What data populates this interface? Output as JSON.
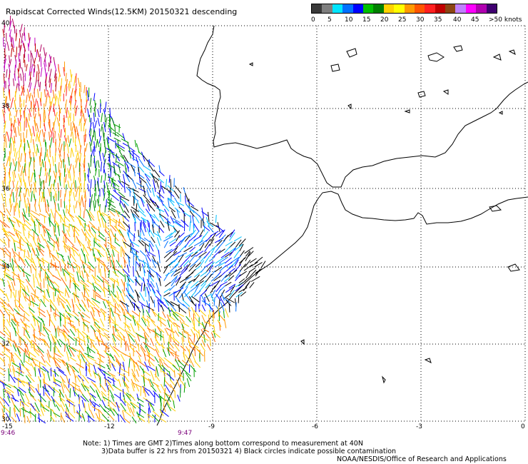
{
  "title": "Rapidscat Corrected Winds(12.5KM) 20150321 descending",
  "legend": {
    "colors": [
      "#3a3a3a",
      "#7f7f7f",
      "#00e5ff",
      "#0070ff",
      "#0000ff",
      "#00c000",
      "#008000",
      "#ffd200",
      "#ffff00",
      "#ff9900",
      "#ff5500",
      "#ff2020",
      "#c00000",
      "#8b4513",
      "#c080ff",
      "#ff00ff",
      "#b000b0",
      "#400070"
    ],
    "labels": [
      "0",
      "5",
      "10",
      "15",
      "20",
      "25",
      "30",
      "35",
      "40",
      "45",
      ">50 knots"
    ]
  },
  "map": {
    "lon_labels": [
      "-15",
      "-12",
      "-9",
      "-6",
      "-3",
      "0"
    ],
    "lat_labels": [
      "40",
      "38",
      "36",
      "34",
      "32",
      "30"
    ],
    "time_labels": [
      "9:46",
      "9:47"
    ]
  },
  "notes": {
    "line1": "Note: 1) Times are GMT 2)Times along bottom correspond to measurement at 40N",
    "line2": "3)Data buffer is 22 hrs from 20150321 4) Black circles indicate possible contamination"
  },
  "credit": "NOAA/NESDIS/Office of Research and Applications"
}
